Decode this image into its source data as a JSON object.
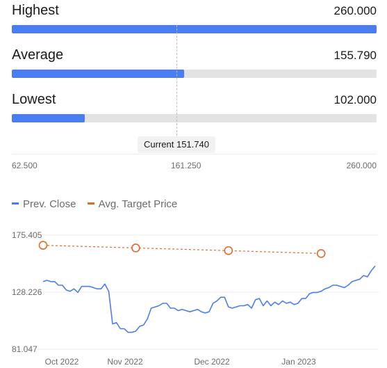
{
  "range": {
    "highest": {
      "label": "Highest",
      "value": "260.000",
      "fill": 1.0
    },
    "average": {
      "label": "Average",
      "value": "155.790",
      "fill": 0.4717
    },
    "lowest": {
      "label": "Lowest",
      "value": "102.000",
      "fill": 0.2
    },
    "current_label": "Current 151.740",
    "scale": {
      "min": "62.500",
      "mid": "161.250",
      "max": "260.000"
    }
  },
  "colors": {
    "accent": "#4a7df0",
    "target": "#e06a2c",
    "track": "#e3e3e3"
  },
  "legend": {
    "prev_close": "Prev. Close",
    "avg_target": "Avg. Target Price"
  },
  "chart_data": {
    "type": "line",
    "y_ticks": [
      "175.405",
      "128.226",
      "81.047"
    ],
    "ylim": [
      81.047,
      175.405
    ],
    "x_ticks": [
      "Oct 2022",
      "Nov 2022",
      "Dec 2022",
      "Jan 2023"
    ],
    "series": [
      {
        "name": "Prev. Close",
        "values": [
          137,
          138,
          137,
          137,
          134,
          134,
          130,
          129,
          131,
          128,
          133,
          133,
          133,
          132,
          131,
          131,
          135,
          129,
          102,
          103,
          98,
          98,
          95,
          95,
          96,
          100,
          101,
          106,
          115,
          116,
          117,
          119,
          119,
          115,
          115,
          113,
          114,
          113,
          112,
          113,
          114,
          112,
          111,
          112,
          119,
          121,
          124,
          124,
          116,
          115,
          116,
          117,
          117,
          118,
          115,
          122,
          123,
          117,
          121,
          117,
          120,
          118,
          121,
          119,
          120,
          118,
          119,
          123,
          123,
          127,
          128,
          128,
          129,
          131,
          132,
          134,
          134,
          133,
          132,
          134,
          137,
          138,
          139,
          142,
          141,
          146,
          150
        ]
      },
      {
        "name": "Avg. Target Price",
        "points": [
          {
            "x": 0,
            "y": 167
          },
          {
            "x": 24,
            "y": 164.8
          },
          {
            "x": 48,
            "y": 162.6
          },
          {
            "x": 72,
            "y": 160.2
          }
        ]
      }
    ]
  }
}
